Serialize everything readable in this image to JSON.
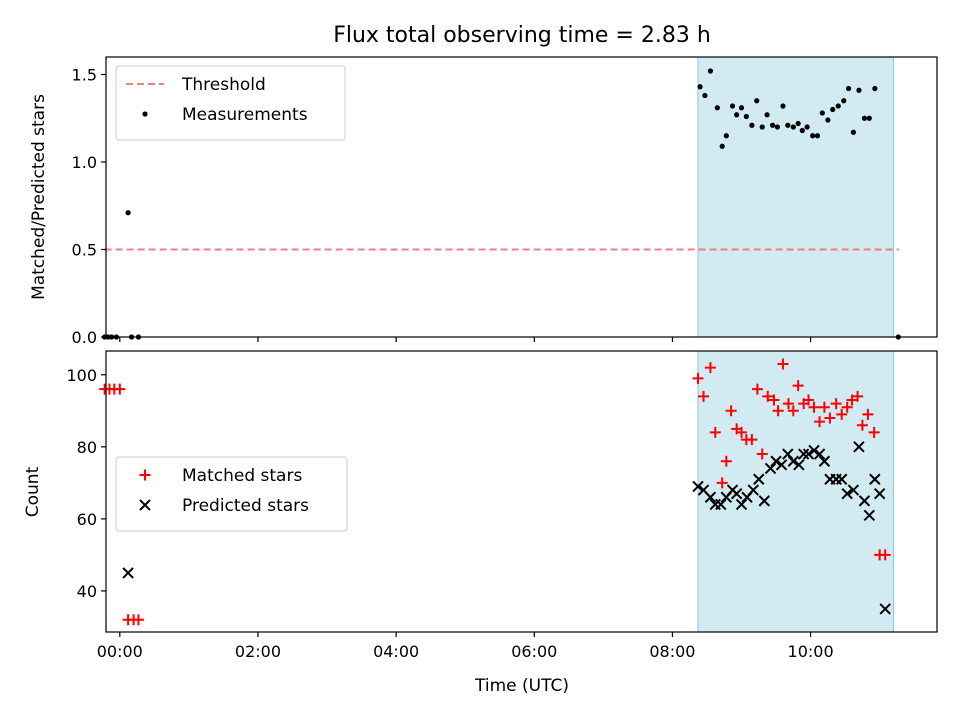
{
  "colors": {
    "threshold": "#f08080",
    "measurements": "#000000",
    "matched": "#ff0000",
    "predicted": "#000000",
    "shade": "#add8e6"
  },
  "chart_data": [
    {
      "type": "scatter",
      "title": "Flux total observing time = 2.83 h",
      "xlabel": "",
      "ylabel": "Matched/Predicted stars",
      "xlim": [
        -0.2,
        11.83
      ],
      "ylim": [
        0,
        1.6
      ],
      "yticks": [
        0.0,
        0.5,
        1.0,
        1.5
      ],
      "ytick_labels": [
        "0.0",
        "0.5",
        "1.0",
        "1.5"
      ],
      "legend_position": "top-left",
      "shaded_region": {
        "x0": 8.37,
        "x1": 11.2
      },
      "threshold": {
        "name": "Threshold",
        "y": 0.5,
        "x_range": [
          -0.22,
          11.28
        ]
      },
      "series": [
        {
          "name": "Measurements",
          "marker": "dot",
          "points": [
            [
              -0.22,
              0.0
            ],
            [
              -0.17,
              0.0
            ],
            [
              -0.12,
              0.0
            ],
            [
              -0.05,
              0.0
            ],
            [
              0.12,
              0.71
            ],
            [
              0.17,
              0.0
            ],
            [
              0.27,
              0.0
            ],
            [
              8.4,
              1.43
            ],
            [
              8.47,
              1.38
            ],
            [
              8.55,
              1.52
            ],
            [
              8.65,
              1.31
            ],
            [
              8.72,
              1.09
            ],
            [
              8.78,
              1.15
            ],
            [
              8.87,
              1.32
            ],
            [
              8.93,
              1.27
            ],
            [
              9.0,
              1.31
            ],
            [
              9.07,
              1.26
            ],
            [
              9.15,
              1.21
            ],
            [
              9.22,
              1.35
            ],
            [
              9.3,
              1.2
            ],
            [
              9.37,
              1.27
            ],
            [
              9.45,
              1.21
            ],
            [
              9.52,
              1.2
            ],
            [
              9.6,
              1.32
            ],
            [
              9.67,
              1.21
            ],
            [
              9.75,
              1.2
            ],
            [
              9.82,
              1.22
            ],
            [
              9.88,
              1.18
            ],
            [
              9.95,
              1.2
            ],
            [
              10.03,
              1.15
            ],
            [
              10.1,
              1.15
            ],
            [
              10.17,
              1.28
            ],
            [
              10.25,
              1.24
            ],
            [
              10.32,
              1.3
            ],
            [
              10.4,
              1.32
            ],
            [
              10.48,
              1.35
            ],
            [
              10.55,
              1.42
            ],
            [
              10.62,
              1.17
            ],
            [
              10.7,
              1.41
            ],
            [
              10.78,
              1.25
            ],
            [
              10.85,
              1.25
            ],
            [
              10.93,
              1.42
            ],
            [
              11.27,
              0.0
            ]
          ]
        }
      ]
    },
    {
      "type": "scatter",
      "title": "",
      "xlabel": "Time (UTC)",
      "ylabel": "Count",
      "xlim": [
        -0.2,
        11.83
      ],
      "ylim": [
        28.6,
        106.6
      ],
      "xticks": [
        0,
        2,
        4,
        6,
        8,
        10
      ],
      "xtick_labels": [
        "00:00",
        "02:00",
        "04:00",
        "06:00",
        "08:00",
        "10:00"
      ],
      "yticks": [
        40,
        60,
        80,
        100
      ],
      "ytick_labels": [
        "40",
        "60",
        "80",
        "100"
      ],
      "legend_position": "center-left",
      "shaded_region": {
        "x0": 8.37,
        "x1": 11.2
      },
      "series": [
        {
          "name": "Matched stars",
          "marker": "plus",
          "points": [
            [
              -0.22,
              96
            ],
            [
              -0.15,
              96
            ],
            [
              -0.08,
              96
            ],
            [
              0.0,
              96
            ],
            [
              0.12,
              32
            ],
            [
              0.2,
              32
            ],
            [
              0.27,
              32
            ],
            [
              8.37,
              99
            ],
            [
              8.45,
              94
            ],
            [
              8.55,
              102
            ],
            [
              8.62,
              84
            ],
            [
              8.72,
              70
            ],
            [
              8.78,
              76
            ],
            [
              8.85,
              90
            ],
            [
              8.93,
              85
            ],
            [
              9.0,
              84
            ],
            [
              9.07,
              82
            ],
            [
              9.15,
              82
            ],
            [
              9.23,
              96
            ],
            [
              9.3,
              78
            ],
            [
              9.38,
              94
            ],
            [
              9.47,
              93
            ],
            [
              9.53,
              90
            ],
            [
              9.6,
              103
            ],
            [
              9.68,
              92
            ],
            [
              9.75,
              90
            ],
            [
              9.82,
              97
            ],
            [
              9.9,
              92
            ],
            [
              9.97,
              93
            ],
            [
              10.05,
              91
            ],
            [
              10.13,
              87
            ],
            [
              10.2,
              91
            ],
            [
              10.28,
              88
            ],
            [
              10.37,
              92
            ],
            [
              10.45,
              89
            ],
            [
              10.53,
              91
            ],
            [
              10.6,
              93
            ],
            [
              10.68,
              94
            ],
            [
              10.75,
              86
            ],
            [
              10.83,
              89
            ],
            [
              10.92,
              84
            ],
            [
              11.0,
              50
            ],
            [
              11.08,
              50
            ]
          ]
        },
        {
          "name": "Predicted stars",
          "marker": "x",
          "points": [
            [
              0.12,
              45
            ],
            [
              8.37,
              69
            ],
            [
              8.45,
              68
            ],
            [
              8.55,
              66
            ],
            [
              8.62,
              64
            ],
            [
              8.7,
              64
            ],
            [
              8.78,
              66
            ],
            [
              8.87,
              68
            ],
            [
              8.93,
              67
            ],
            [
              9.0,
              64
            ],
            [
              9.08,
              66
            ],
            [
              9.17,
              68
            ],
            [
              9.25,
              71
            ],
            [
              9.33,
              65
            ],
            [
              9.42,
              74
            ],
            [
              9.5,
              76
            ],
            [
              9.58,
              75
            ],
            [
              9.67,
              78
            ],
            [
              9.75,
              76
            ],
            [
              9.83,
              75
            ],
            [
              9.9,
              78
            ],
            [
              9.97,
              78
            ],
            [
              10.05,
              79
            ],
            [
              10.13,
              78
            ],
            [
              10.2,
              76
            ],
            [
              10.28,
              71
            ],
            [
              10.37,
              71
            ],
            [
              10.45,
              71
            ],
            [
              10.53,
              67
            ],
            [
              10.62,
              68
            ],
            [
              10.7,
              80
            ],
            [
              10.78,
              65
            ],
            [
              10.85,
              61
            ],
            [
              10.93,
              71
            ],
            [
              11.0,
              67
            ],
            [
              11.08,
              35
            ]
          ]
        }
      ]
    }
  ]
}
